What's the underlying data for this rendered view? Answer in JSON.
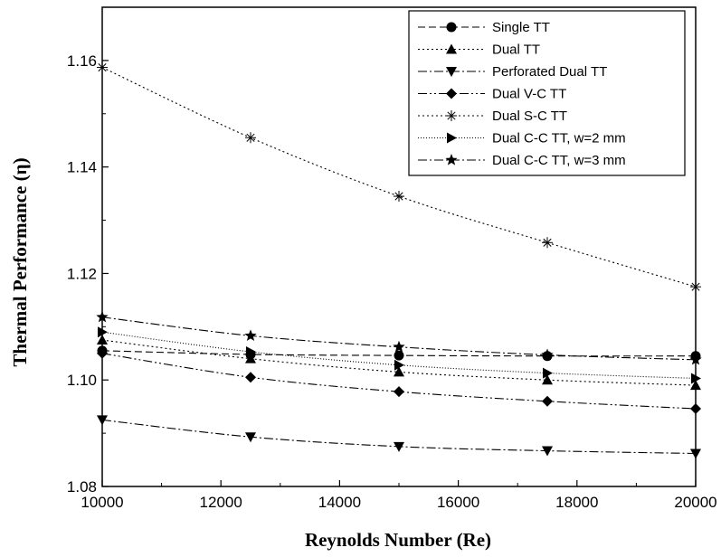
{
  "chart_data": {
    "type": "line",
    "title": "",
    "xlabel": "Reynolds Number (Re)",
    "ylabel": "Thermal Performance (η)",
    "xlim": [
      10000,
      20000
    ],
    "ylim": [
      1.08,
      1.17
    ],
    "xticks": [
      10000,
      12000,
      14000,
      16000,
      18000,
      20000
    ],
    "yticks": [
      1.08,
      1.1,
      1.12,
      1.14,
      1.16
    ],
    "ytick_labels": [
      "1.08",
      "1.10",
      "1.12",
      "1.14",
      "1.16"
    ],
    "grid": false,
    "legend_position": "top-right",
    "x": [
      10000,
      12500,
      15000,
      17500,
      20000
    ],
    "series": [
      {
        "name": "Single TT",
        "marker": "circle",
        "dash": "8,4",
        "values": [
          1.1055,
          1.1048,
          1.1046,
          1.1045,
          1.1045
        ]
      },
      {
        "name": "Dual TT",
        "marker": "triangle-up",
        "dash": "2,3",
        "values": [
          1.1075,
          1.104,
          1.1015,
          1.1,
          1.099
        ]
      },
      {
        "name": "Perforated Dual TT",
        "marker": "triangle-down",
        "dash": "10,3,2,3",
        "values": [
          1.0925,
          1.0893,
          1.0875,
          1.0867,
          1.0862
        ]
      },
      {
        "name": "Dual V-C TT",
        "marker": "diamond",
        "dash": "10,3,2,3,2,3",
        "values": [
          1.105,
          1.1005,
          1.0978,
          1.096,
          1.0946
        ]
      },
      {
        "name": "Dual S-C TT",
        "marker": "asterisk",
        "dash": "2,3",
        "values": [
          1.1587,
          1.1455,
          1.1345,
          1.1258,
          1.1175
        ]
      },
      {
        "name": "Dual C-C TT, w=2 mm",
        "marker": "triangle-right",
        "dash": "1,2",
        "values": [
          1.109,
          1.1053,
          1.1028,
          1.1013,
          1.1003
        ]
      },
      {
        "name": "Dual C-C TT, w=3 mm",
        "marker": "star",
        "dash": "10,3,2,3",
        "values": [
          1.1118,
          1.1083,
          1.1062,
          1.1047,
          1.1038
        ]
      }
    ]
  }
}
